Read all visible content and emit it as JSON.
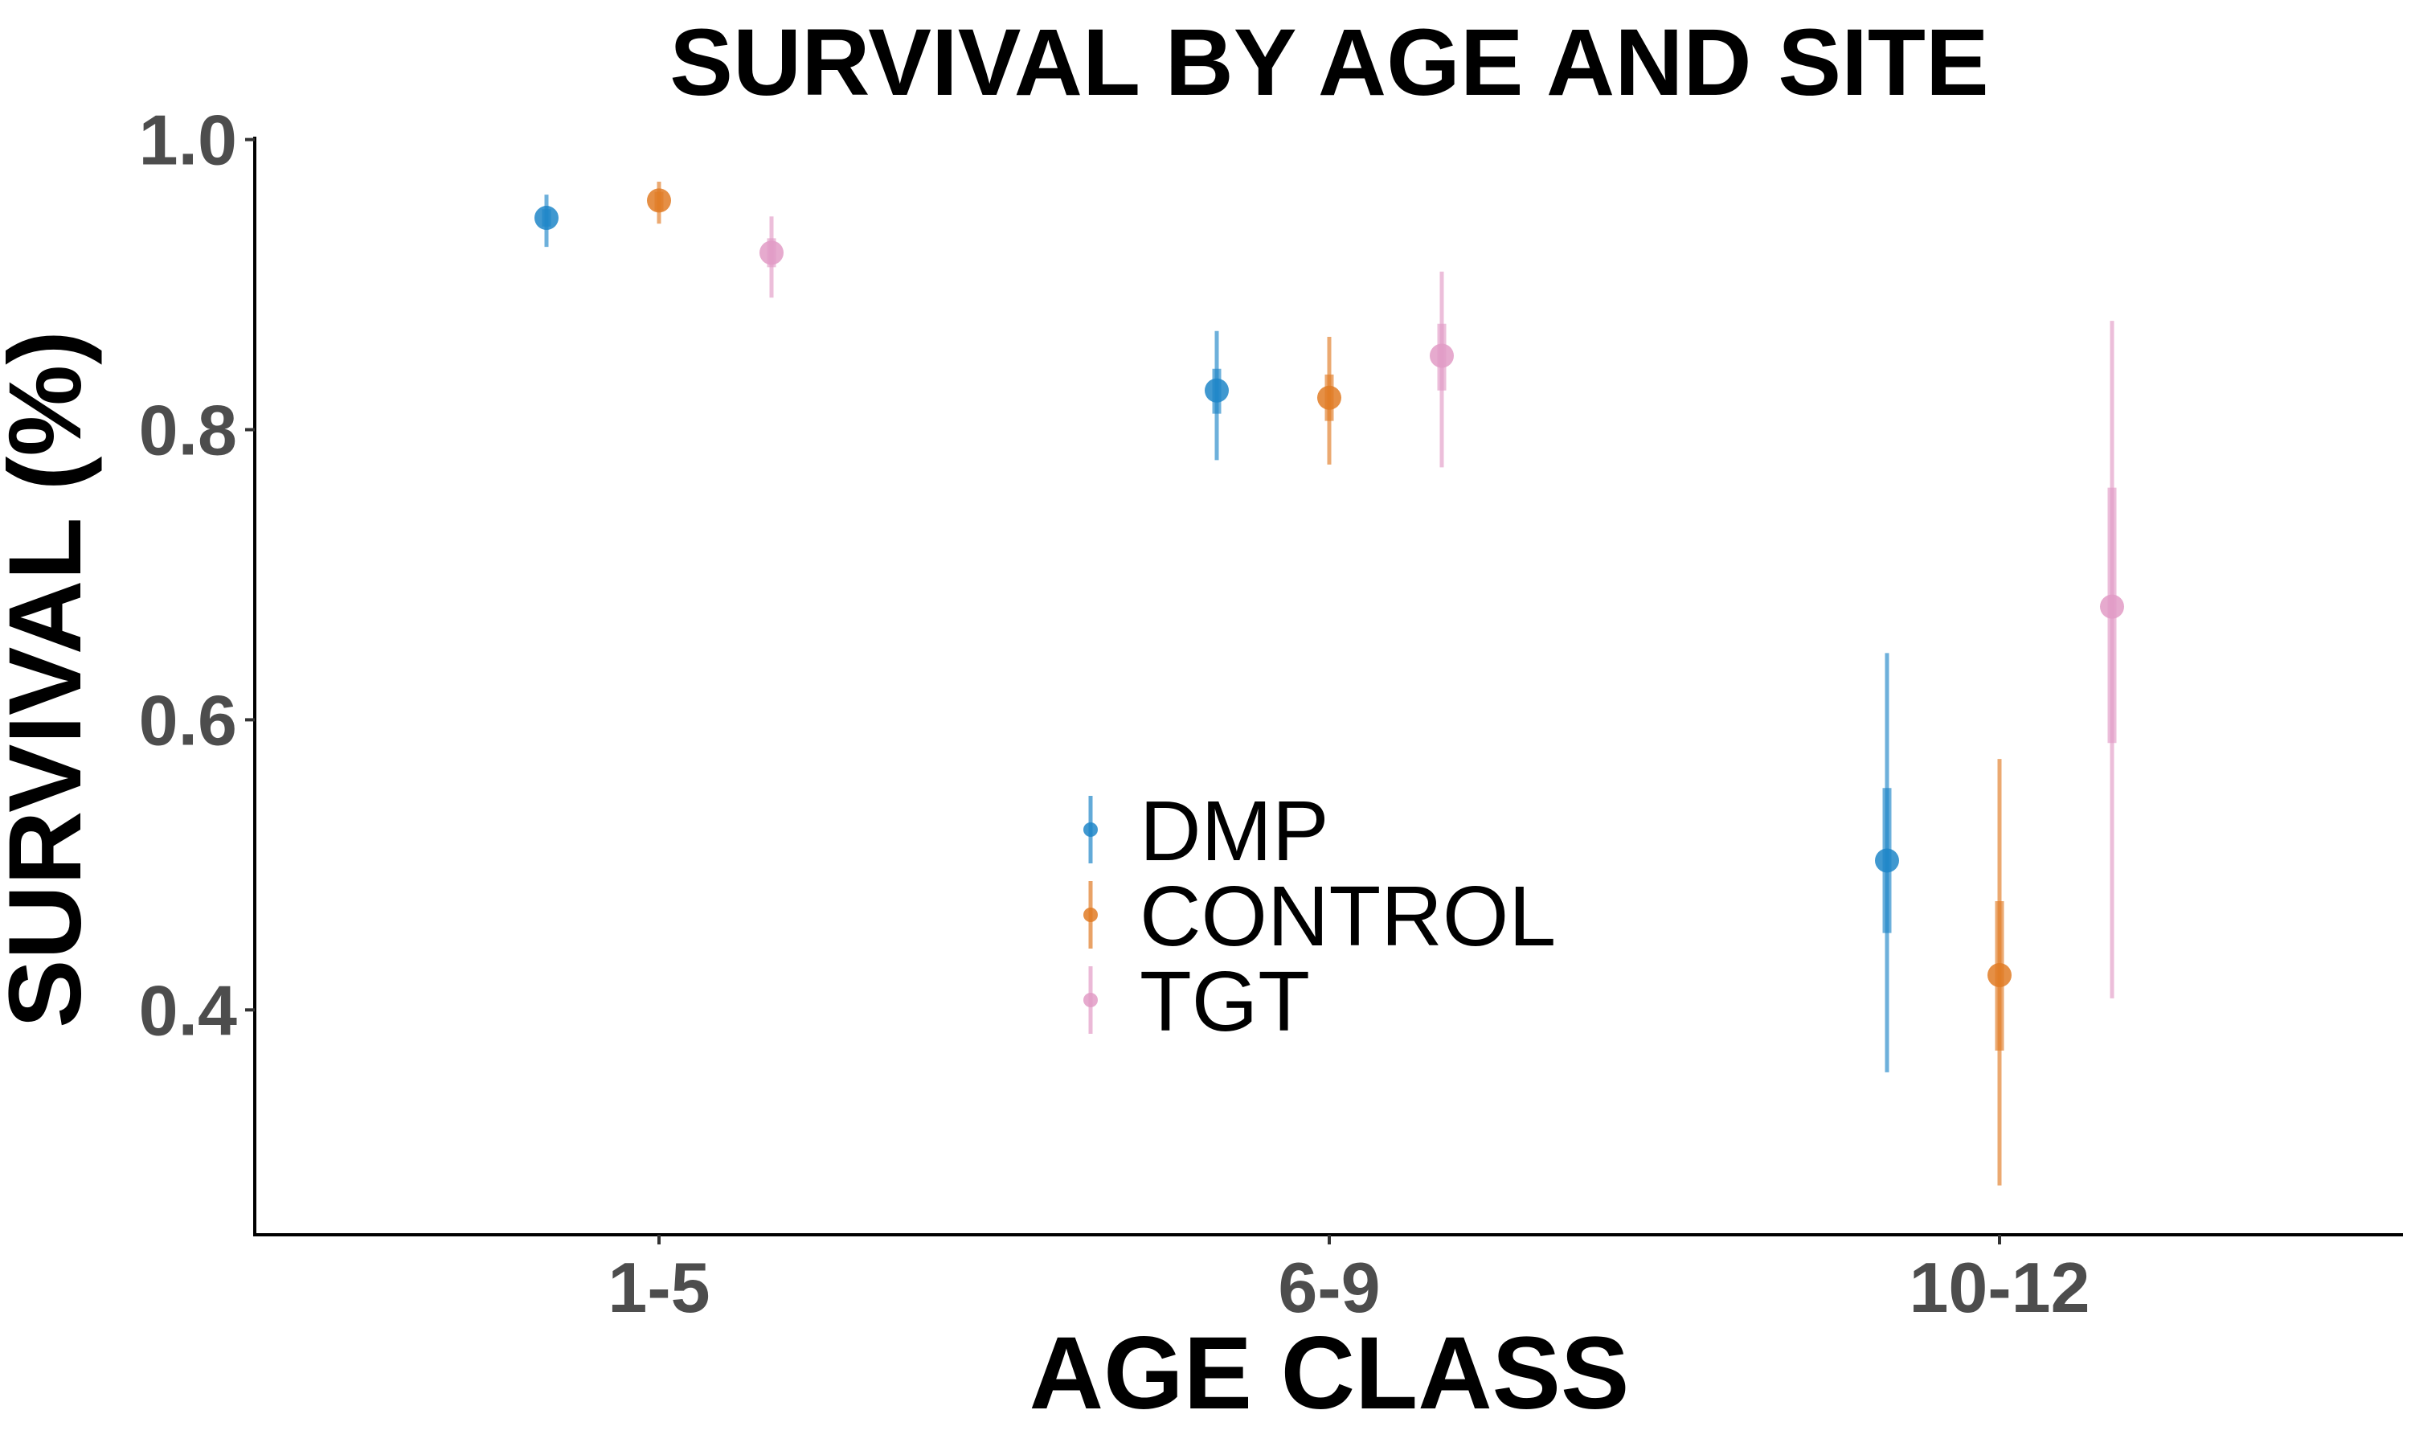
{
  "chart_data": {
    "type": "scatter",
    "title": "SURVIVAL BY AGE AND SITE",
    "xlabel": "AGE CLASS",
    "ylabel": "SURVIVAL (%)",
    "categories": [
      "1-5",
      "6-9",
      "10-12"
    ],
    "ylim": [
      0.245,
      1.002
    ],
    "yticks": [
      0.4,
      0.6,
      0.8,
      1.0
    ],
    "ytick_labels": [
      "0.4",
      "0.6",
      "0.8",
      "1.0"
    ],
    "grid": false,
    "legend_position": "center",
    "series": [
      {
        "name": "DMP",
        "color": "#1f86c8",
        "values": [
          0.946,
          0.827,
          0.503
        ],
        "inner_low": [
          0.94,
          0.811,
          0.453
        ],
        "inner_high": [
          0.952,
          0.842,
          0.553
        ],
        "outer_low": [
          0.926,
          0.779,
          0.357
        ],
        "outer_high": [
          0.962,
          0.868,
          0.646
        ]
      },
      {
        "name": "CONTROL",
        "color": "#e07b25",
        "values": [
          0.958,
          0.822,
          0.424
        ],
        "inner_low": [
          0.951,
          0.806,
          0.372
        ],
        "inner_high": [
          0.964,
          0.838,
          0.475
        ],
        "outer_low": [
          0.942,
          0.776,
          0.279
        ],
        "outer_high": [
          0.971,
          0.864,
          0.573
        ]
      },
      {
        "name": "TGT",
        "color": "#e29bc6",
        "values": [
          0.922,
          0.851,
          0.678
        ],
        "inner_low": [
          0.912,
          0.827,
          0.584
        ],
        "inner_high": [
          0.932,
          0.873,
          0.76
        ],
        "outer_low": [
          0.891,
          0.774,
          0.408
        ],
        "outer_high": [
          0.947,
          0.909,
          0.875
        ]
      }
    ]
  }
}
